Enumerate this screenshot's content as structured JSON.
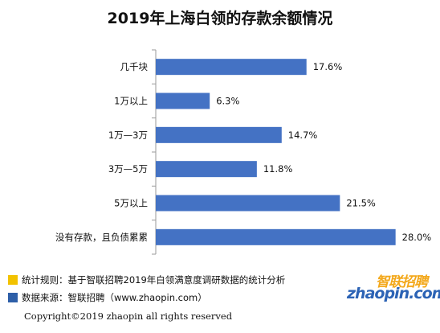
{
  "chart_data": {
    "type": "bar",
    "orientation": "horizontal",
    "title": "2019年上海白领的存款余额情况",
    "categories": [
      "几千块",
      "1万以上",
      "1万—3万",
      "3万—5万",
      "5万以上",
      "没有存款，且负债累累"
    ],
    "values": [
      17.6,
      6.3,
      14.7,
      11.8,
      21.5,
      28.0
    ],
    "value_labels": [
      "17.6%",
      "6.3%",
      "14.7%",
      "11.8%",
      "21.5%",
      "28.0%"
    ],
    "xlim": [
      0,
      30
    ],
    "grid": false,
    "bar_color": "#4472c4"
  },
  "notes": {
    "rule": "统计规则：基于智联招聘2019年白领满意度调研数据的统计分析",
    "source": "数据来源：智联招聘（www.zhaopin.com）",
    "rule_color": "#f2c200",
    "source_color": "#2e5fa8"
  },
  "copyright": "Copyright©2019 zhaopin all rights reserved",
  "logo": {
    "cn": "智联招聘",
    "en": "zhaopin.com",
    "icon": "zhaopin-logo-icon"
  }
}
